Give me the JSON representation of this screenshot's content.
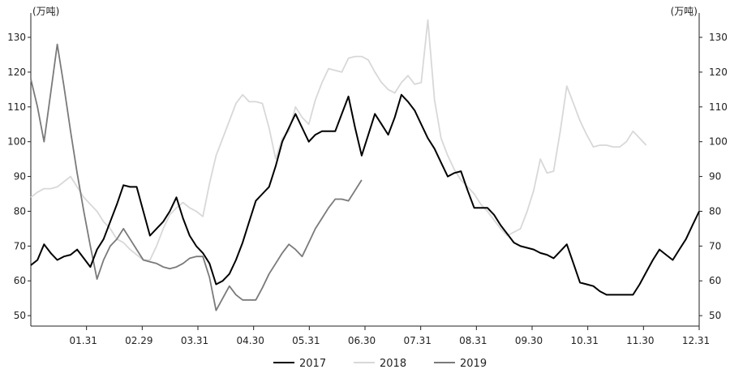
{
  "chart_data": {
    "type": "line",
    "unit_left": "(万吨)",
    "unit_right": "(万吨)",
    "ylim": [
      47,
      137
    ],
    "y_ticks": [
      50,
      60,
      70,
      80,
      90,
      100,
      110,
      120,
      130
    ],
    "x_ticks": [
      "01.31",
      "02.29",
      "03.31",
      "04.30",
      "05.31",
      "06.30",
      "07.31",
      "08.31",
      "09.30",
      "10.31",
      "11.30",
      "12.31"
    ],
    "grid": false,
    "legend_position": "bottom-center",
    "series": [
      {
        "name": "2017",
        "color": "#000000",
        "values": [
          64.5,
          66,
          70.5,
          68,
          66,
          67,
          67.5,
          69,
          66.5,
          64,
          69,
          72,
          77,
          82,
          87.5,
          87,
          87,
          80,
          73,
          75,
          77,
          80,
          84,
          78,
          73,
          70,
          68,
          65,
          59,
          60,
          62,
          66,
          71,
          77,
          83,
          85,
          87,
          93,
          100,
          104,
          108,
          104,
          100,
          102,
          103,
          103,
          103,
          108,
          113,
          104,
          96,
          102,
          108,
          105,
          102,
          107,
          113.5,
          111.5,
          109,
          105,
          101,
          98,
          94,
          90,
          91,
          91.5,
          86,
          81,
          81,
          81,
          79,
          76,
          73.5,
          71,
          70,
          69.5,
          69,
          68,
          67.5,
          66.5,
          68.5,
          70.5,
          65,
          59.5,
          59,
          58.5,
          57,
          56,
          56,
          56,
          56,
          56,
          59,
          62.5,
          66,
          69,
          67.5,
          66,
          69,
          72,
          76,
          80
        ]
      },
      {
        "name": "2018",
        "color": "#d8d8d8",
        "values": [
          84,
          85.5,
          86.5,
          86.5,
          87,
          88.5,
          90,
          87,
          84,
          82,
          80,
          77,
          75,
          72,
          71,
          69,
          67.5,
          66,
          66,
          70,
          75,
          79,
          81,
          82.5,
          81,
          80,
          78.5,
          88,
          96,
          101,
          106,
          111,
          113.5,
          111.5,
          111.5,
          111,
          104,
          95,
          101,
          103,
          110,
          107,
          105,
          112,
          117,
          121,
          120.5,
          120,
          124,
          124.5,
          124.5,
          123.5,
          120,
          117,
          115,
          114,
          117,
          119,
          116.5,
          117,
          135,
          112,
          101,
          96,
          92,
          89,
          87,
          85,
          82,
          80,
          77.5,
          75,
          73,
          74,
          75,
          80,
          86,
          95,
          91,
          91.5,
          103,
          116,
          111,
          106,
          102,
          98.5,
          99,
          99,
          98.5,
          98.5,
          100,
          103,
          101,
          99
        ]
      },
      {
        "name": "2019",
        "color": "#7a7a7a",
        "values": [
          118,
          110,
          100,
          114,
          128,
          116,
          103,
          91,
          80,
          70,
          60.5,
          66,
          70,
          72,
          75,
          72,
          69,
          66,
          65.5,
          65,
          64,
          63.5,
          64,
          65,
          66.5,
          67,
          67,
          61,
          51.5,
          55,
          58.5,
          56,
          54.5,
          54.5,
          54.5,
          58,
          62,
          65,
          68,
          70.5,
          69,
          67,
          71,
          75,
          78,
          81,
          83.5,
          83.5,
          83,
          86,
          89
        ]
      }
    ],
    "legend": [
      "2017",
      "2018",
      "2019"
    ]
  }
}
